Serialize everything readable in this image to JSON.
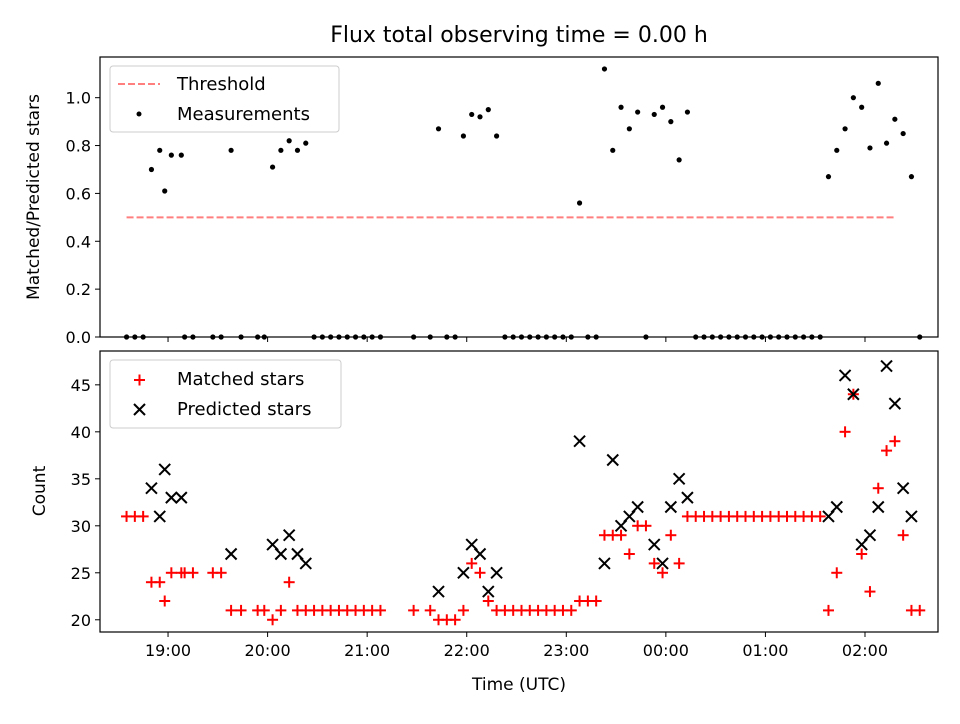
{
  "title": "Flux total observing time = 0.00 h",
  "colors": {
    "threshold": "#ff7f7f",
    "measurement": "#000000",
    "matched": "#ff0000",
    "predicted": "#000000"
  },
  "chart_data": [
    {
      "type": "scatter",
      "ylabel": "Matched/Predicted stars",
      "xlim": [
        "18:19",
        "02:44"
      ],
      "ylim": [
        0,
        1.17
      ],
      "yticks": [
        "0.0",
        "0.2",
        "0.4",
        "0.6",
        "0.8",
        "1.0"
      ],
      "legend": "upper-left",
      "grid": false,
      "threshold": {
        "name": "Threshold",
        "value": 0.5,
        "x_start": "18:35",
        "x_end": "02:19"
      },
      "series": [
        {
          "name": "Measurements",
          "marker": "dot",
          "points": [
            [
              "18:35",
              0
            ],
            [
              "18:40",
              0
            ],
            [
              "18:45",
              0
            ],
            [
              "18:50",
              0.7
            ],
            [
              "18:55",
              0.78
            ],
            [
              "18:58",
              0.61
            ],
            [
              "19:02",
              0.76
            ],
            [
              "19:08",
              0.76
            ],
            [
              "19:10",
              0
            ],
            [
              "19:15",
              0
            ],
            [
              "19:27",
              0
            ],
            [
              "19:32",
              0
            ],
            [
              "19:38",
              0.78
            ],
            [
              "19:44",
              0
            ],
            [
              "19:54",
              0
            ],
            [
              "19:58",
              0
            ],
            [
              "20:03",
              0.71
            ],
            [
              "20:08",
              0.78
            ],
            [
              "20:13",
              0.82
            ],
            [
              "20:18",
              0.78
            ],
            [
              "20:23",
              0.81
            ],
            [
              "20:28",
              0
            ],
            [
              "20:33",
              0
            ],
            [
              "20:38",
              0
            ],
            [
              "20:43",
              0
            ],
            [
              "20:48",
              0
            ],
            [
              "20:53",
              0
            ],
            [
              "20:58",
              0
            ],
            [
              "21:03",
              0
            ],
            [
              "21:08",
              0
            ],
            [
              "21:28",
              0
            ],
            [
              "21:38",
              0
            ],
            [
              "21:43",
              0.87
            ],
            [
              "21:48",
              0
            ],
            [
              "21:53",
              0
            ],
            [
              "21:58",
              0.84
            ],
            [
              "22:03",
              0.93
            ],
            [
              "22:08",
              0.92
            ],
            [
              "22:13",
              0.95
            ],
            [
              "22:18",
              0.84
            ],
            [
              "22:23",
              0
            ],
            [
              "22:28",
              0
            ],
            [
              "22:33",
              0
            ],
            [
              "22:38",
              0
            ],
            [
              "22:43",
              0
            ],
            [
              "22:48",
              0
            ],
            [
              "22:53",
              0
            ],
            [
              "22:58",
              0
            ],
            [
              "23:03",
              0
            ],
            [
              "23:08",
              0.56
            ],
            [
              "23:13",
              0
            ],
            [
              "23:18",
              0
            ],
            [
              "23:23",
              1.12
            ],
            [
              "23:28",
              0.78
            ],
            [
              "23:33",
              0.96
            ],
            [
              "23:38",
              0.87
            ],
            [
              "23:43",
              0.94
            ],
            [
              "23:48",
              0
            ],
            [
              "23:53",
              0.93
            ],
            [
              "23:58",
              0.96
            ],
            [
              "00:03",
              0.9
            ],
            [
              "00:08",
              0.74
            ],
            [
              "00:13",
              0.94
            ],
            [
              "00:18",
              0
            ],
            [
              "00:23",
              0
            ],
            [
              "00:28",
              0
            ],
            [
              "00:33",
              0
            ],
            [
              "00:38",
              0
            ],
            [
              "00:43",
              0
            ],
            [
              "00:48",
              0
            ],
            [
              "00:53",
              0
            ],
            [
              "00:58",
              0
            ],
            [
              "01:03",
              0
            ],
            [
              "01:08",
              0
            ],
            [
              "01:13",
              0
            ],
            [
              "01:18",
              0
            ],
            [
              "01:23",
              0
            ],
            [
              "01:28",
              0
            ],
            [
              "01:33",
              0
            ],
            [
              "01:38",
              0.67
            ],
            [
              "01:43",
              0.78
            ],
            [
              "01:48",
              0.87
            ],
            [
              "01:53",
              1.0
            ],
            [
              "01:58",
              0.96
            ],
            [
              "02:03",
              0.79
            ],
            [
              "02:08",
              1.06
            ],
            [
              "02:13",
              0.81
            ],
            [
              "02:18",
              0.91
            ],
            [
              "02:23",
              0.85
            ],
            [
              "02:28",
              0.67
            ],
            [
              "02:33",
              0
            ]
          ]
        }
      ],
      "x_range_hint": "18:19-02:44"
    },
    {
      "type": "scatter",
      "xlabel": "Time (UTC)",
      "ylabel": "Count",
      "xticks": [
        "19:00",
        "20:00",
        "21:00",
        "22:00",
        "23:00",
        "00:00",
        "01:00",
        "02:00"
      ],
      "xlim": [
        "18:19",
        "02:44"
      ],
      "ylim": [
        18.7,
        48.6
      ],
      "yticks": [
        "20",
        "25",
        "30",
        "35",
        "40",
        "45"
      ],
      "legend": "upper-left",
      "grid": false,
      "series": [
        {
          "name": "Matched stars",
          "marker": "plus",
          "points": [
            [
              "18:35",
              31
            ],
            [
              "18:40",
              31
            ],
            [
              "18:45",
              31
            ],
            [
              "18:50",
              24
            ],
            [
              "18:55",
              24
            ],
            [
              "18:58",
              22
            ],
            [
              "19:02",
              25
            ],
            [
              "19:08",
              25
            ],
            [
              "19:10",
              25
            ],
            [
              "19:15",
              25
            ],
            [
              "19:27",
              25
            ],
            [
              "19:32",
              25
            ],
            [
              "19:38",
              21
            ],
            [
              "19:44",
              21
            ],
            [
              "19:54",
              21
            ],
            [
              "19:58",
              21
            ],
            [
              "20:03",
              20
            ],
            [
              "20:08",
              21
            ],
            [
              "20:13",
              24
            ],
            [
              "20:18",
              21
            ],
            [
              "20:23",
              21
            ],
            [
              "20:28",
              21
            ],
            [
              "20:33",
              21
            ],
            [
              "20:38",
              21
            ],
            [
              "20:43",
              21
            ],
            [
              "20:48",
              21
            ],
            [
              "20:53",
              21
            ],
            [
              "20:58",
              21
            ],
            [
              "21:03",
              21
            ],
            [
              "21:08",
              21
            ],
            [
              "21:28",
              21
            ],
            [
              "21:38",
              21
            ],
            [
              "21:43",
              20
            ],
            [
              "21:48",
              20
            ],
            [
              "21:53",
              20
            ],
            [
              "21:58",
              21
            ],
            [
              "22:03",
              26
            ],
            [
              "22:08",
              25
            ],
            [
              "22:13",
              22
            ],
            [
              "22:18",
              21
            ],
            [
              "22:23",
              21
            ],
            [
              "22:28",
              21
            ],
            [
              "22:33",
              21
            ],
            [
              "22:38",
              21
            ],
            [
              "22:43",
              21
            ],
            [
              "22:48",
              21
            ],
            [
              "22:53",
              21
            ],
            [
              "22:58",
              21
            ],
            [
              "23:03",
              21
            ],
            [
              "23:08",
              22
            ],
            [
              "23:13",
              22
            ],
            [
              "23:18",
              22
            ],
            [
              "23:23",
              29
            ],
            [
              "23:28",
              29
            ],
            [
              "23:33",
              29
            ],
            [
              "23:38",
              27
            ],
            [
              "23:43",
              30
            ],
            [
              "23:48",
              30
            ],
            [
              "23:53",
              26
            ],
            [
              "23:58",
              25
            ],
            [
              "00:03",
              29
            ],
            [
              "00:08",
              26
            ],
            [
              "00:13",
              31
            ],
            [
              "00:18",
              31
            ],
            [
              "00:23",
              31
            ],
            [
              "00:28",
              31
            ],
            [
              "00:33",
              31
            ],
            [
              "00:38",
              31
            ],
            [
              "00:43",
              31
            ],
            [
              "00:48",
              31
            ],
            [
              "00:53",
              31
            ],
            [
              "00:58",
              31
            ],
            [
              "01:03",
              31
            ],
            [
              "01:08",
              31
            ],
            [
              "01:13",
              31
            ],
            [
              "01:18",
              31
            ],
            [
              "01:23",
              31
            ],
            [
              "01:28",
              31
            ],
            [
              "01:33",
              31
            ],
            [
              "01:38",
              21
            ],
            [
              "01:43",
              25
            ],
            [
              "01:48",
              40
            ],
            [
              "01:53",
              44
            ],
            [
              "01:58",
              27
            ],
            [
              "02:03",
              23
            ],
            [
              "02:08",
              34
            ],
            [
              "02:13",
              38
            ],
            [
              "02:18",
              39
            ],
            [
              "02:23",
              29
            ],
            [
              "02:28",
              21
            ],
            [
              "02:33",
              21
            ]
          ]
        },
        {
          "name": "Predicted stars",
          "marker": "x",
          "points": [
            [
              "18:50",
              34
            ],
            [
              "18:55",
              31
            ],
            [
              "18:58",
              36
            ],
            [
              "19:02",
              33
            ],
            [
              "19:08",
              33
            ],
            [
              "19:38",
              27
            ],
            [
              "20:03",
              28
            ],
            [
              "20:08",
              27
            ],
            [
              "20:13",
              29
            ],
            [
              "20:18",
              27
            ],
            [
              "20:23",
              26
            ],
            [
              "21:43",
              23
            ],
            [
              "21:58",
              25
            ],
            [
              "22:03",
              28
            ],
            [
              "22:08",
              27
            ],
            [
              "22:13",
              23
            ],
            [
              "22:18",
              25
            ],
            [
              "23:08",
              39
            ],
            [
              "23:23",
              26
            ],
            [
              "23:28",
              37
            ],
            [
              "23:33",
              30
            ],
            [
              "23:38",
              31
            ],
            [
              "23:43",
              32
            ],
            [
              "23:53",
              28
            ],
            [
              "23:58",
              26
            ],
            [
              "00:03",
              32
            ],
            [
              "00:08",
              35
            ],
            [
              "00:13",
              33
            ],
            [
              "01:38",
              31
            ],
            [
              "01:43",
              32
            ],
            [
              "01:48",
              46
            ],
            [
              "01:53",
              44
            ],
            [
              "01:58",
              28
            ],
            [
              "02:03",
              29
            ],
            [
              "02:08",
              32
            ],
            [
              "02:13",
              47
            ],
            [
              "02:18",
              43
            ],
            [
              "02:23",
              34
            ],
            [
              "02:28",
              31
            ]
          ]
        }
      ]
    }
  ]
}
